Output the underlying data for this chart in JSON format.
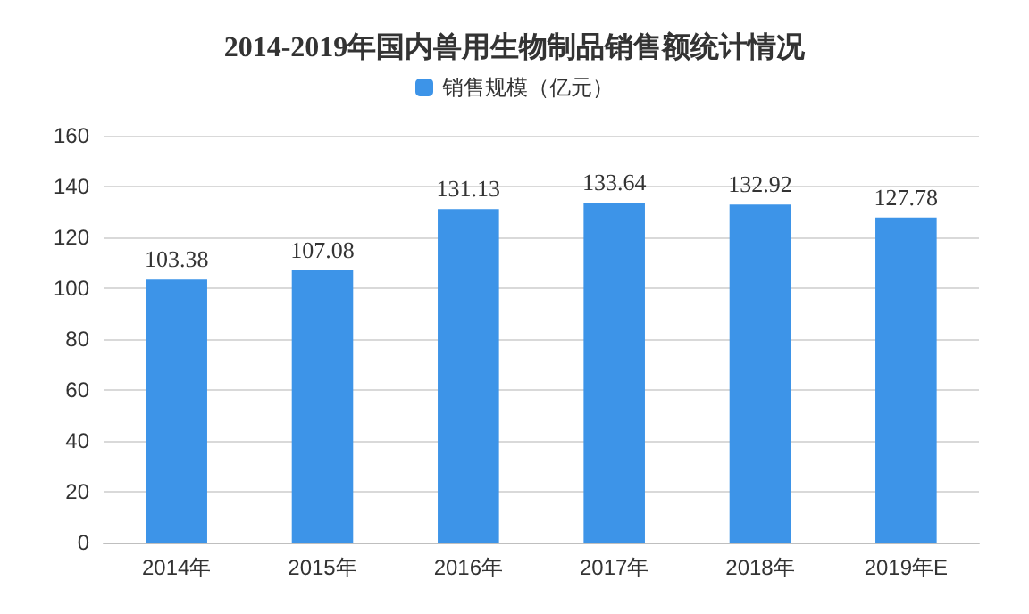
{
  "chart_data": {
    "type": "bar",
    "title": "2014-2019年国内兽用生物制品销售额统计情况",
    "categories": [
      "2014年",
      "2015年",
      "2016年",
      "2017年",
      "2018年",
      "2019年E"
    ],
    "series": [
      {
        "name": "销售规模（亿元）",
        "color": "#3d94e8",
        "values": [
          103.38,
          107.08,
          131.13,
          133.64,
          132.92,
          127.78
        ]
      }
    ],
    "ylim": [
      0,
      160
    ],
    "yticks": [
      0,
      20,
      40,
      60,
      80,
      100,
      120,
      140,
      160
    ],
    "grid": "y",
    "legend": "top",
    "data_labels": true
  }
}
